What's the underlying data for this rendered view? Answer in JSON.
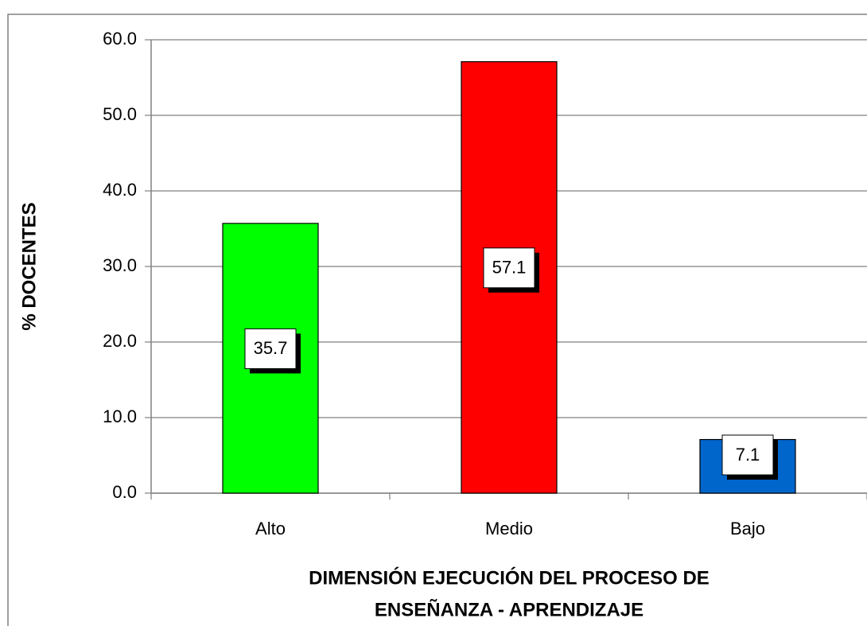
{
  "chart_data": {
    "type": "bar",
    "ylabel": "% DOCENTES",
    "xlabel": [
      "DIMENSIÓN EJECUCIÓN DEL PROCESO DE",
      "ENSEÑANZA - APRENDIZAJE"
    ],
    "categories": [
      "Alto",
      "Medio",
      "Bajo"
    ],
    "values": [
      35.7,
      57.1,
      7.1
    ],
    "colors": [
      "#00ff00",
      "#ff0000",
      "#0066cc"
    ],
    "ylim": [
      0,
      60
    ],
    "yticks": [
      {
        "value": 0,
        "label": "0.0"
      },
      {
        "value": 10,
        "label": "10.0"
      },
      {
        "value": 20,
        "label": "20.0"
      },
      {
        "value": 30,
        "label": "30.0"
      },
      {
        "value": 40,
        "label": "40.0"
      },
      {
        "value": 50,
        "label": "50.0"
      },
      {
        "value": 60,
        "label": "60.0"
      }
    ],
    "grid": true
  }
}
